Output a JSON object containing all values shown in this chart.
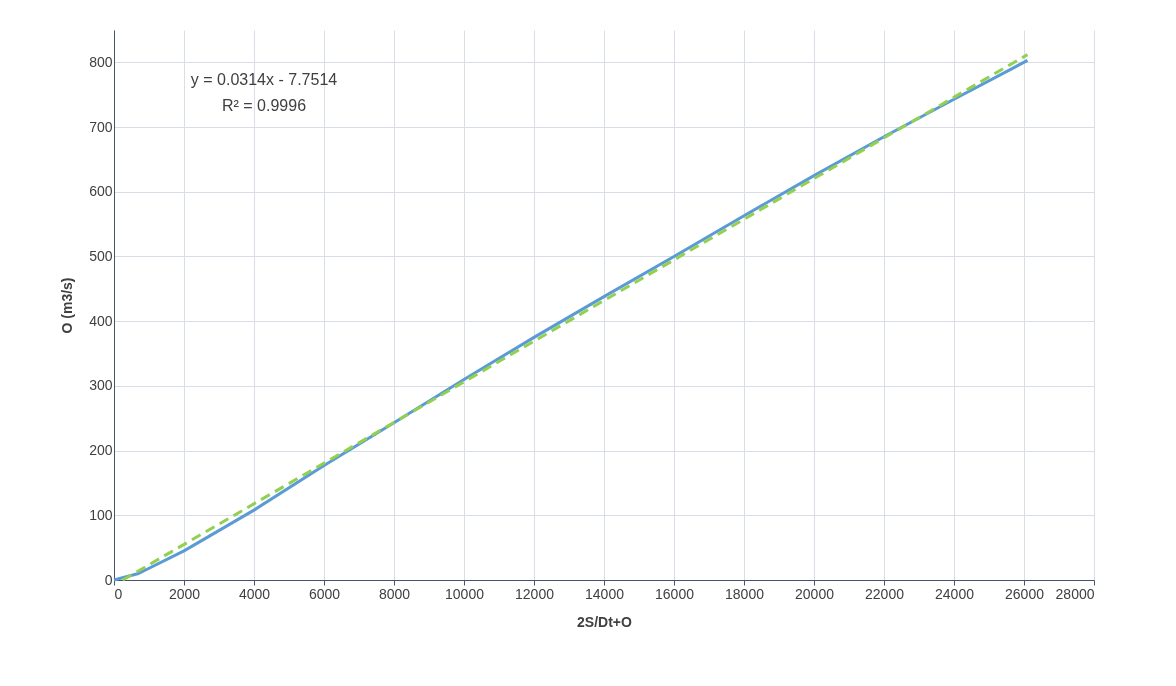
{
  "chart_data": {
    "type": "line",
    "xlabel": "2S/Dt+O",
    "ylabel": "O (m3/s)",
    "xlim": [
      0,
      28000
    ],
    "xticks": [
      0,
      2000,
      4000,
      6000,
      8000,
      10000,
      12000,
      14000,
      16000,
      18000,
      20000,
      22000,
      24000,
      26000,
      28000
    ],
    "ylim": [
      0,
      850
    ],
    "yticks": [
      0,
      100,
      200,
      300,
      400,
      500,
      600,
      700,
      800
    ],
    "grid": true,
    "annotations": [
      "y = 0.0314x - 7.7514",
      "R² = 0.9996"
    ],
    "series": [
      {
        "color": "#5b9bd5",
        "line_style": "solid",
        "x": [
          0,
          700,
          2000,
          4000,
          6000,
          8000,
          10000,
          12000,
          14000,
          16000,
          18000,
          20000,
          22000,
          24000,
          26100
        ],
        "values": [
          0,
          10,
          45,
          108,
          177,
          243,
          310,
          375,
          438,
          500,
          563,
          625,
          685,
          743,
          803
        ]
      },
      {
        "color": "#92d050",
        "line_style": "dashed",
        "x": [
          250,
          26100
        ],
        "values": [
          0,
          812
        ]
      }
    ]
  }
}
